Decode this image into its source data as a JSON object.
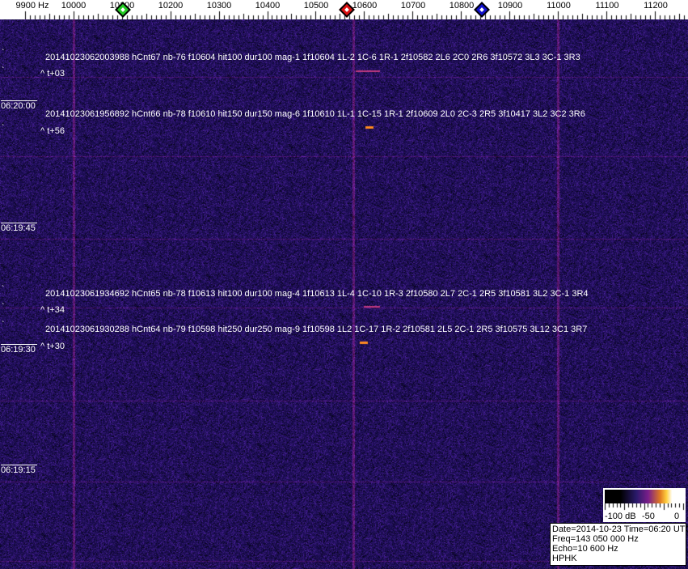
{
  "frequency_axis": {
    "labels": [
      "9900 Hz",
      "10000",
      "10100",
      "10200",
      "10300",
      "10400",
      "10500",
      "10600",
      "10700",
      "10800",
      "10900",
      "11000",
      "11100",
      "11200"
    ],
    "markers": [
      {
        "name": "green",
        "color": "#22cc22",
        "freq_hz": 10100
      },
      {
        "name": "red",
        "color": "#dd1111",
        "freq_hz": 10563
      },
      {
        "name": "blue",
        "color": "#1111cc",
        "freq_hz": 10843
      }
    ]
  },
  "time_labels": [
    "06:20:00",
    "06:19:45",
    "06:19:30",
    "06:19:15"
  ],
  "events": [
    {
      "text": "20141023062003988 hCnt67 nb-76 f10604 hit100 dur100 mag-1 1f10604 1L-2 1C-6 1R-1 2f10582 2L6 2C0 2R6 3f10572 3L3 3C-1 3R3",
      "offset": "^ t+03"
    },
    {
      "text": "20141023061956892 hCnt66 nb-78 f10610 hit150 dur150 mag-6 1f10610 1L-1 1C-15 1R-1 2f10609 2L0 2C-3 2R5 3f10417 3L2 3C2 3R6",
      "offset": "^ t+56"
    },
    {
      "text": "20141023061934692 hCnt65 nb-78 f10613 hit100 dur100 mag-4 1f10613 1L-4 1C-10 1R-3 2f10580 2L7 2C-1 2R5 3f10581 3L2 3C-1 3R4",
      "offset": "^ t+34"
    },
    {
      "text": "20141023061930288 hCnt64 nb-79 f10598 hit250 dur250 mag-9 1f10598 1L2 1C-17 1R-2 2f10581 2L5 2C-1 2R5 3f10575 3L12 3C1 3R7",
      "offset": "^ t+30"
    }
  ],
  "color_scale": {
    "labels": [
      "-100 dB",
      "-50",
      "0"
    ]
  },
  "info": {
    "date_time": "Date=2014-10-23 Time=06:20 UTC",
    "freq": "Freq=143 050 000 Hz",
    "echo": "Echo=10 600 Hz",
    "station": "HPHK"
  }
}
